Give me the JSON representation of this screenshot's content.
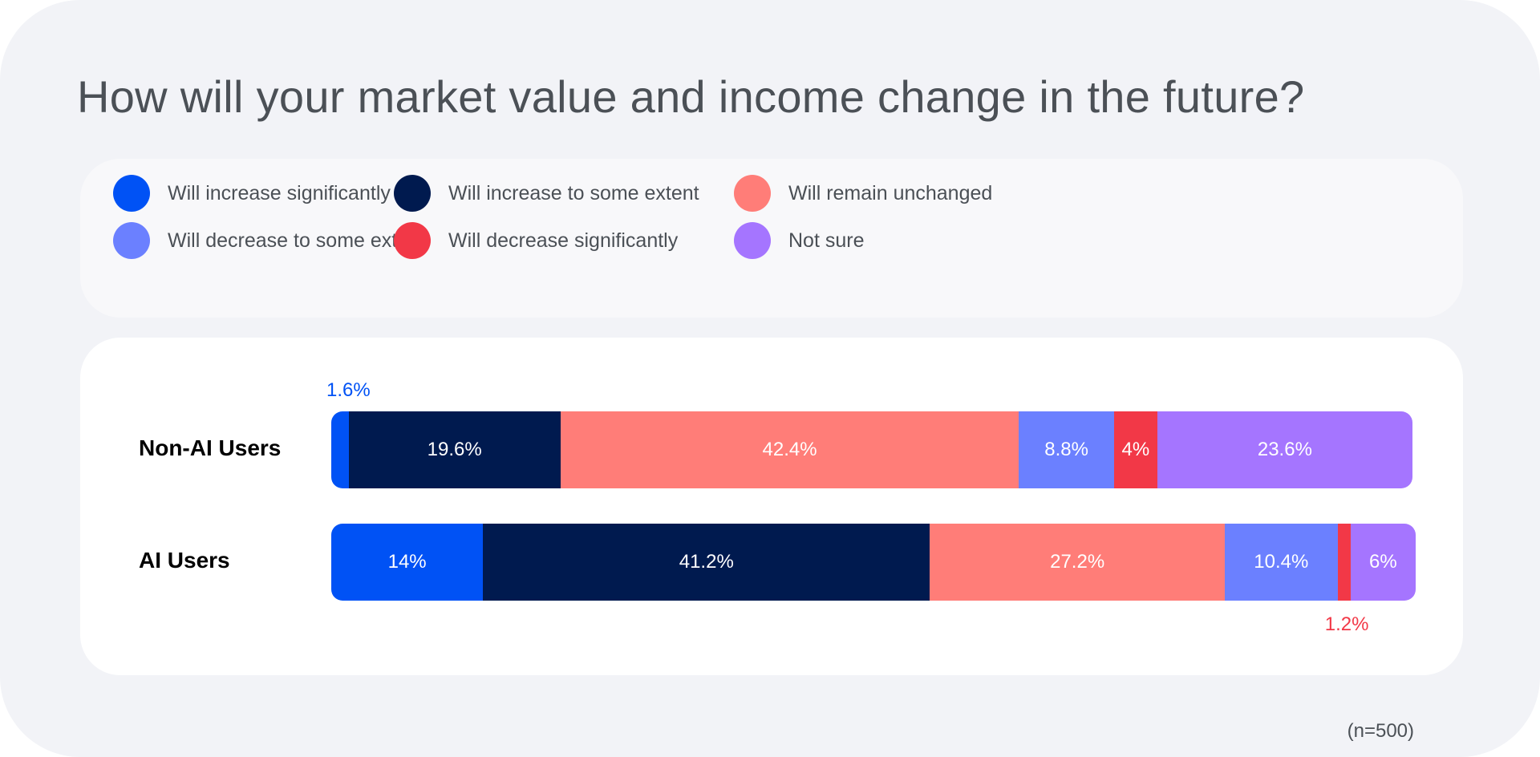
{
  "chart_data": {
    "type": "bar",
    "orientation": "horizontal",
    "stacked": true,
    "title": "How will your market value and income change in the future?",
    "categories": [
      "Non-AI Users",
      "AI Users"
    ],
    "series": [
      {
        "name": "Will increase significantly",
        "color": "#0052f5",
        "values": [
          1.6,
          14
        ]
      },
      {
        "name": "Will increase to some extent",
        "color": "#001a4f",
        "values": [
          19.6,
          41.2
        ]
      },
      {
        "name": "Will remain unchanged",
        "color": "#ff7d78",
        "values": [
          42.4,
          27.2
        ]
      },
      {
        "name": "Will decrease to some extent",
        "color": "#6b80ff",
        "values": [
          8.8,
          10.4
        ]
      },
      {
        "name": "Will decrease significantly",
        "color": "#f23847",
        "values": [
          4,
          1.2
        ]
      },
      {
        "name": "Not sure",
        "color": "#a575ff",
        "values": [
          23.6,
          6
        ]
      }
    ],
    "unit": "%",
    "xlim": [
      0,
      100
    ],
    "legend_placement": "top",
    "grid": false,
    "note": "(n=500)"
  }
}
